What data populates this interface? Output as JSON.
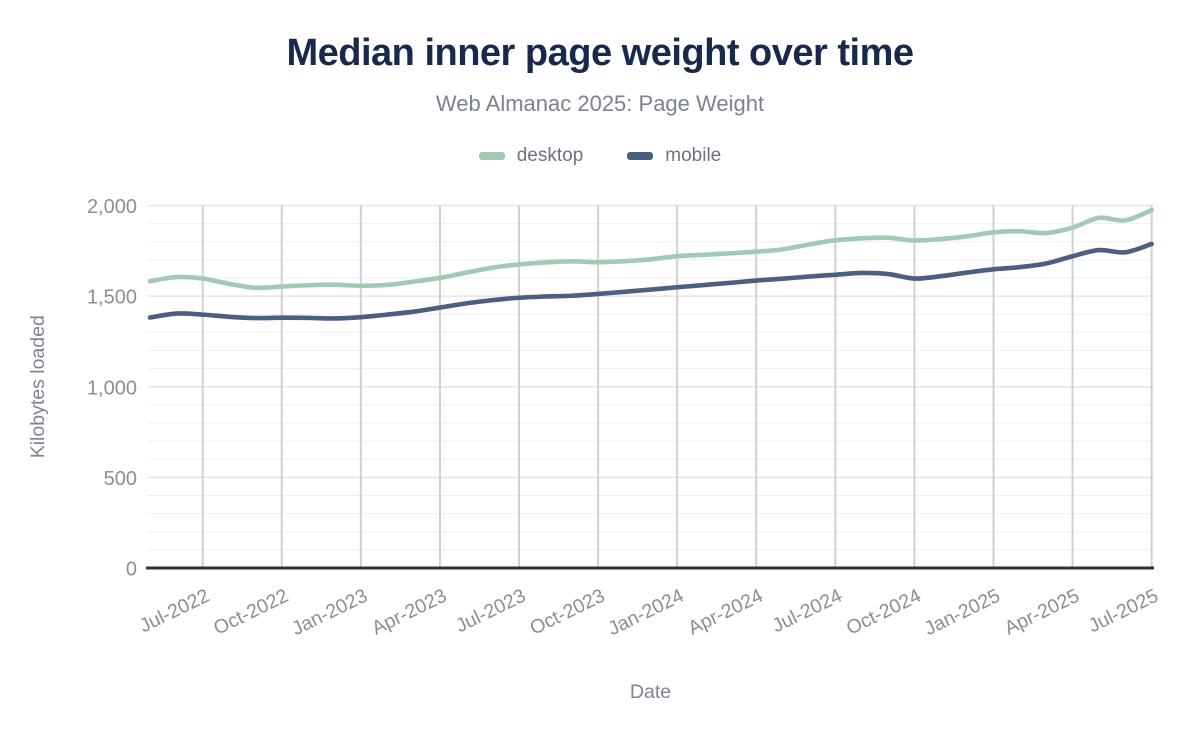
{
  "header": {
    "title": "Median inner page weight over time",
    "subtitle": "Web Almanac 2025: Page Weight"
  },
  "axes": {
    "x_title": "Date",
    "y_title": "Kilobytes loaded"
  },
  "chart_data": {
    "type": "line",
    "title": "Median inner page weight over time",
    "subtitle": "Web Almanac 2025: Page Weight",
    "xlabel": "Date",
    "ylabel": "Kilobytes loaded",
    "ylim": [
      0,
      2000
    ],
    "y_ticks": [
      0,
      500,
      1000,
      1500,
      2000
    ],
    "y_tick_labels": [
      "0",
      "500",
      "1,000",
      "1,500",
      "2,000"
    ],
    "grid": {
      "vertical": true,
      "horizontal_minor_step": 100,
      "horizontal_major_step": 500
    },
    "legend_position": "top",
    "x": [
      "2022-05",
      "2022-06",
      "2022-07",
      "2022-08",
      "2022-09",
      "2022-10",
      "2022-11",
      "2022-12",
      "2023-01",
      "2023-02",
      "2023-03",
      "2023-04",
      "2023-05",
      "2023-06",
      "2023-07",
      "2023-08",
      "2023-09",
      "2023-10",
      "2023-11",
      "2023-12",
      "2024-01",
      "2024-02",
      "2024-03",
      "2024-04",
      "2024-05",
      "2024-06",
      "2024-07",
      "2024-08",
      "2024-09",
      "2024-10",
      "2024-11",
      "2024-12",
      "2025-01",
      "2025-02",
      "2025-03",
      "2025-04",
      "2025-05",
      "2025-06",
      "2025-07"
    ],
    "x_tick_labels": [
      "Jul-2022",
      "Oct-2022",
      "Jan-2023",
      "Apr-2023",
      "Jul-2023",
      "Oct-2023",
      "Jan-2024",
      "Apr-2024",
      "Jul-2024",
      "Oct-2024",
      "Jan-2025",
      "Apr-2025",
      "Jul-2025"
    ],
    "series": [
      {
        "name": "desktop",
        "color": "#a3c9b3",
        "values": [
          1582,
          1605,
          1597,
          1568,
          1546,
          1553,
          1560,
          1563,
          1557,
          1562,
          1580,
          1601,
          1630,
          1657,
          1675,
          1686,
          1692,
          1687,
          1693,
          1703,
          1720,
          1728,
          1736,
          1745,
          1758,
          1785,
          1808,
          1819,
          1822,
          1807,
          1815,
          1830,
          1852,
          1858,
          1848,
          1878,
          1932,
          1918,
          1975
        ]
      },
      {
        "name": "mobile",
        "color": "#4c5f80",
        "values": [
          1382,
          1404,
          1398,
          1386,
          1379,
          1381,
          1380,
          1377,
          1384,
          1398,
          1414,
          1437,
          1460,
          1478,
          1491,
          1498,
          1502,
          1512,
          1524,
          1536,
          1549,
          1561,
          1573,
          1586,
          1596,
          1608,
          1618,
          1628,
          1622,
          1597,
          1610,
          1630,
          1648,
          1660,
          1680,
          1720,
          1754,
          1742,
          1788
        ]
      }
    ]
  },
  "colors": {
    "title": "#18294b",
    "subtitle": "#7b8290",
    "axis_text": "#898e97",
    "axis_line": "#333333",
    "grid_vertical": "#d0d0d0",
    "grid_minor": "#efefef",
    "grid_major": "#e4e4e4",
    "background": "#ffffff"
  }
}
